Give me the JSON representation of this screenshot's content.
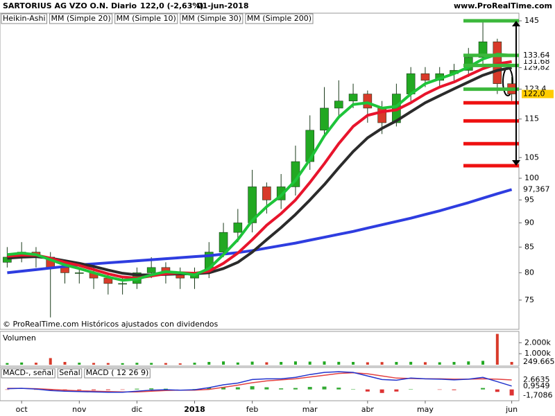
{
  "header": {
    "title": "SARTORIUS AG VZO O.N.",
    "period": "Diario",
    "last": "122,0 (-2,63%)",
    "date": "01-jun-2018",
    "site": "www.ProRealTime.com"
  },
  "footnote": "© ProRealTime.com Históricos ajustados con dividendos",
  "chart_data": [
    {
      "type": "candlestick",
      "log_scale": true,
      "ylim": [
        70,
        147.4
      ],
      "categories": [
        null,
        "oct",
        null,
        null,
        null,
        "nov",
        null,
        null,
        null,
        "dic",
        null,
        null,
        null,
        "2018",
        null,
        null,
        null,
        "feb",
        null,
        null,
        null,
        "mar",
        null,
        null,
        null,
        "abr",
        null,
        null,
        null,
        "may",
        null,
        null,
        null,
        null,
        null,
        "jun"
      ],
      "yticks": [
        75,
        80,
        85,
        90,
        95,
        100,
        105,
        115,
        {
          "value": 123.4,
          "label": "123,4"
        },
        {
          "value": 129.82,
          "label": "129,82"
        },
        145
      ],
      "candles": {
        "name": "Heikin-Ashi",
        "up_color": "#22a822",
        "down_color": "#d83a2a",
        "tag_color": "#ffcc00",
        "last_label": "122,0",
        "open": [
          82,
          83,
          84,
          83,
          81,
          80,
          80,
          79,
          78,
          78,
          80,
          81,
          80,
          79,
          80,
          84,
          88,
          90,
          98,
          95,
          98,
          104,
          112,
          118,
          120,
          122,
          118,
          114,
          122,
          128,
          126,
          128,
          129,
          133,
          138,
          125
        ],
        "high": [
          85,
          86,
          85,
          84,
          82,
          81,
          81,
          80,
          79,
          81,
          83,
          82,
          81,
          81,
          86,
          90,
          93,
          102,
          99,
          101,
          108,
          116,
          124,
          126,
          125,
          123,
          120,
          125,
          130,
          130,
          130,
          131,
          136,
          145,
          139,
          127
        ],
        "low": [
          81,
          82,
          81,
          72,
          78,
          78,
          77,
          76,
          76,
          77,
          79,
          78,
          77,
          77,
          79,
          83,
          86,
          88,
          92,
          93,
          96,
          102,
          110,
          115,
          118,
          114,
          111,
          113,
          120,
          124,
          124,
          126,
          127,
          131,
          122,
          120
        ],
        "close": [
          83,
          84,
          83,
          81,
          80,
          80,
          79,
          78,
          78,
          80,
          81,
          80,
          79,
          80,
          84,
          88,
          90,
          98,
          95,
          98,
          104,
          112,
          118,
          120,
          122,
          118,
          114,
          122,
          128,
          126,
          128,
          129,
          133,
          138,
          125,
          122
        ]
      },
      "series": [
        {
          "name": "MM (Simple 200)",
          "color": "#2e3de0",
          "last_label": "97,367",
          "values": [
            80,
            80.3,
            80.6,
            80.9,
            81.2,
            81.5,
            81.7,
            81.9,
            82.1,
            82.3,
            82.5,
            82.7,
            82.9,
            83.1,
            83.3,
            83.6,
            83.9,
            84.3,
            84.8,
            85.3,
            85.8,
            86.4,
            87,
            87.6,
            88.2,
            88.9,
            89.6,
            90.3,
            91,
            91.8,
            92.6,
            93.5,
            94.4,
            95.4,
            96.4,
            97.367
          ]
        },
        {
          "name": "MM (Simple 30)",
          "color": "#2b2b2b",
          "last_label": "129,82",
          "values": [
            82.8,
            83,
            83.1,
            82.8,
            82.3,
            81.8,
            81.2,
            80.5,
            79.9,
            79.6,
            79.6,
            79.7,
            79.8,
            79.8,
            80,
            80.8,
            82,
            84,
            86.5,
            89,
            91.8,
            95,
            98.5,
            102.5,
            106.5,
            110,
            112.5,
            114.5,
            117,
            119.5,
            121.5,
            123.5,
            125.5,
            127.5,
            129,
            129.82
          ]
        },
        {
          "name": "MM (Simple 20)",
          "color": "#e8142c",
          "last_label": "131.68",
          "values": [
            83.2,
            83.4,
            83.4,
            82.8,
            82,
            81.4,
            80.6,
            79.8,
            79.2,
            79,
            79.4,
            79.8,
            80,
            79.9,
            80.3,
            81.8,
            83.8,
            86.5,
            89.5,
            92,
            95,
            99,
            103.5,
            108.5,
            113,
            116,
            117,
            117.5,
            119.5,
            122,
            124,
            125.5,
            127.5,
            129.5,
            131,
            131.68
          ]
        },
        {
          "name": "MM (Simple 10)",
          "color": "#1ec43a",
          "last_label": "133.64",
          "values": [
            83.5,
            83.8,
            83.5,
            82.5,
            81.5,
            80.8,
            80,
            79.2,
            78.6,
            78.8,
            79.6,
            80.2,
            80,
            79.6,
            80.8,
            83.5,
            86.5,
            90.5,
            93.5,
            96,
            99.5,
            104.5,
            110.5,
            115.5,
            119,
            119.5,
            118,
            118.5,
            122,
            125,
            126.5,
            128,
            130,
            132.5,
            134,
            133.64
          ]
        }
      ],
      "legend_order": [
        2,
        3,
        1,
        0
      ],
      "levels": {
        "green": [
          145,
          133.64,
          130.5,
          123.4
        ],
        "red": [
          119.5,
          114.5,
          108.5,
          103
        ],
        "green_color": "#3cb83c",
        "red_color": "#ee1111"
      }
    },
    {
      "type": "bar",
      "title": "Volumen",
      "ylim": [
        0,
        2900000
      ],
      "yticks": [
        {
          "value": 1000000,
          "label": "1.000k"
        },
        {
          "value": 2000000,
          "label": "2.000k"
        }
      ],
      "last_label": "249.665",
      "values": [
        150000,
        200000,
        180000,
        600000,
        250000,
        180000,
        160000,
        150000,
        140000,
        170000,
        160000,
        150000,
        120000,
        180000,
        250000,
        300000,
        200000,
        280000,
        220000,
        250000,
        300000,
        280000,
        300000,
        260000,
        250000,
        220000,
        240000,
        250000,
        260000,
        230000,
        220000,
        250000,
        300000,
        350000,
        2800000,
        249665
      ]
    },
    {
      "type": "line",
      "ylim": [
        -3,
        6
      ],
      "histogram": {
        "name": "MACD-, señal",
        "up_color": "#33aa33",
        "down_color": "#dd3333",
        "last_label": "-1,7086",
        "values": [
          -0.1,
          0,
          -0.1,
          -0.3,
          -0.3,
          -0.2,
          -0.2,
          -0.2,
          -0.1,
          0.2,
          0.3,
          0.2,
          0,
          0.1,
          0.5,
          0.7,
          0.6,
          0.9,
          0.6,
          0.3,
          0.4,
          0.7,
          0.8,
          0.5,
          0.1,
          -0.6,
          -1,
          -0.6,
          0.1,
          0,
          -0.1,
          -0.2,
          0,
          0.4,
          -0.7,
          -1.7086
        ]
      },
      "series": [
        {
          "name": "Señal",
          "color": "#e34040",
          "last_label": "2,6635",
          "values": [
            0.3,
            0.3,
            0.2,
            0,
            -0.2,
            -0.4,
            -0.5,
            -0.6,
            -0.7,
            -0.7,
            -0.5,
            -0.3,
            -0.2,
            -0.2,
            0,
            0.6,
            1.2,
            1.9,
            2.4,
            2.7,
            3,
            3.5,
            4,
            4.5,
            4.7,
            4.4,
            3.8,
            3.2,
            3.1,
            3,
            3,
            2.9,
            2.9,
            3,
            2.9,
            2.6635
          ]
        },
        {
          "name": "MACD ( 12 26 9)",
          "color": "#2233cc",
          "last_label": "0,9549",
          "values": [
            0.2,
            0.3,
            0.1,
            -0.3,
            -0.5,
            -0.6,
            -0.7,
            -0.8,
            -0.8,
            -0.5,
            -0.2,
            -0.1,
            -0.2,
            -0.1,
            0.5,
            1.3,
            1.8,
            2.8,
            3,
            3,
            3.4,
            4.2,
            4.8,
            5,
            4.8,
            3.8,
            2.8,
            2.6,
            3.2,
            3,
            2.9,
            2.7,
            2.9,
            3.4,
            2.2,
            0.9549
          ]
        }
      ]
    }
  ]
}
